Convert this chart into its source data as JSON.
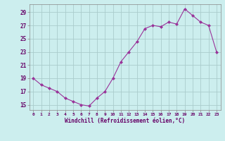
{
  "x": [
    0,
    1,
    2,
    3,
    4,
    5,
    6,
    7,
    8,
    9,
    10,
    11,
    12,
    13,
    14,
    15,
    16,
    17,
    18,
    19,
    20,
    21,
    22,
    23
  ],
  "y": [
    19.0,
    18.0,
    17.5,
    17.0,
    16.0,
    15.5,
    15.0,
    14.8,
    16.0,
    17.0,
    19.0,
    21.5,
    23.0,
    24.5,
    26.5,
    27.0,
    26.8,
    27.5,
    27.2,
    29.5,
    28.5,
    27.5,
    27.0,
    23.0
  ],
  "line_color": "#993399",
  "marker": "D",
  "marker_size": 2,
  "bg_color": "#cceeee",
  "grid_color": "#aacccc",
  "xlabel": "Windchill (Refroidissement éolien,°C)",
  "xlabel_color": "#660066",
  "tick_color": "#660066",
  "yticks": [
    15,
    17,
    19,
    21,
    23,
    25,
    27,
    29
  ],
  "xticks": [
    0,
    1,
    2,
    3,
    4,
    5,
    6,
    7,
    8,
    9,
    10,
    11,
    12,
    13,
    14,
    15,
    16,
    17,
    18,
    19,
    20,
    21,
    22,
    23
  ],
  "ylim": [
    14.2,
    30.2
  ],
  "xlim": [
    -0.5,
    23.5
  ]
}
